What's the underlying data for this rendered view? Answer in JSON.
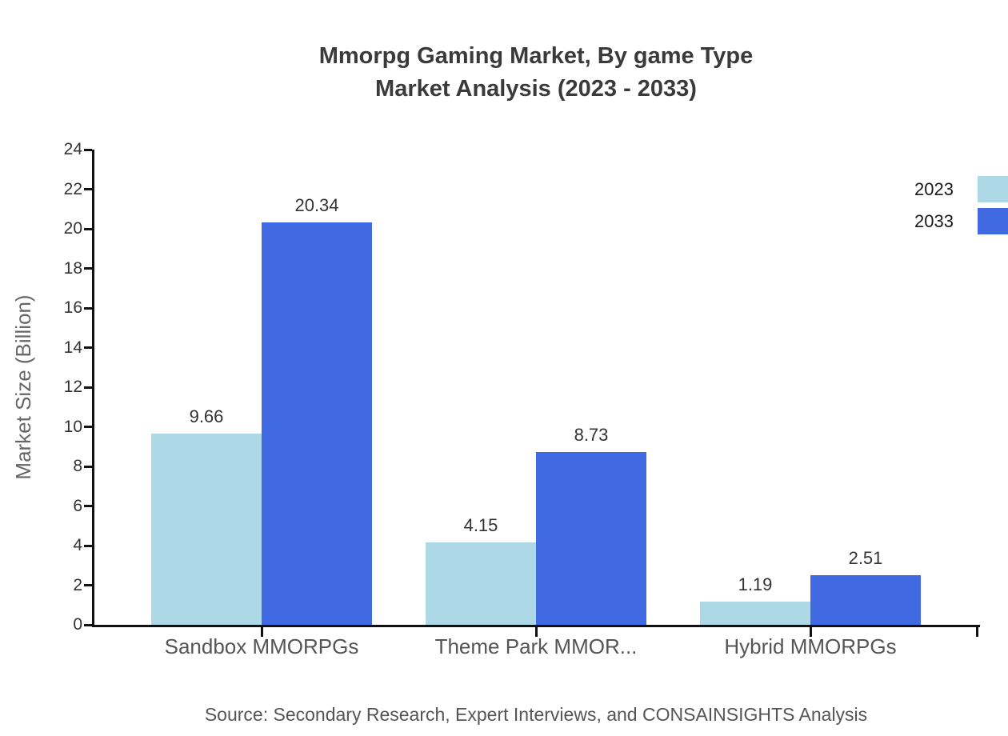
{
  "title": {
    "line1": "Mmorpg Gaming Market, By game Type",
    "line2": "Market Analysis (2023 - 2033)"
  },
  "y_axis": {
    "label": "Market Size (Billion)",
    "ticks": [
      0,
      2,
      4,
      6,
      8,
      10,
      12,
      14,
      16,
      18,
      20,
      22,
      24
    ]
  },
  "legend": [
    {
      "label": "2023",
      "color": "#ADD8E6"
    },
    {
      "label": "2033",
      "color": "#4169E1"
    }
  ],
  "source": "Source: Secondary Research, Expert Interviews, and CONSAINSIGHTS Analysis",
  "colors": {
    "series_2023": "#ADD8E6",
    "series_2033": "#4169E1",
    "axis": "#111111",
    "title_text": "#3a3a3a",
    "tick_text": "#333333",
    "category_text": "#555555",
    "value_text": "#333333"
  },
  "chart_data": {
    "type": "bar",
    "categories": [
      "Sandbox MMORPGs",
      "Theme Park MMOR...",
      "Hybrid MMORPGs"
    ],
    "series": [
      {
        "name": "2023",
        "color": "#ADD8E6",
        "values": [
          9.66,
          4.15,
          1.19
        ]
      },
      {
        "name": "2033",
        "color": "#4169E1",
        "values": [
          20.34,
          8.73,
          2.51
        ]
      }
    ],
    "value_labels": [
      "9.66",
      "20.34",
      "4.15",
      "8.73",
      "1.19",
      "2.51"
    ],
    "title": "Mmorpg Gaming Market, By game Type Market Analysis (2023 - 2033)",
    "xlabel": "",
    "ylabel": "Market Size (Billion)",
    "ylim": [
      0,
      24
    ],
    "ytick_step": 2,
    "grid": false,
    "legend_position": "top-right"
  }
}
